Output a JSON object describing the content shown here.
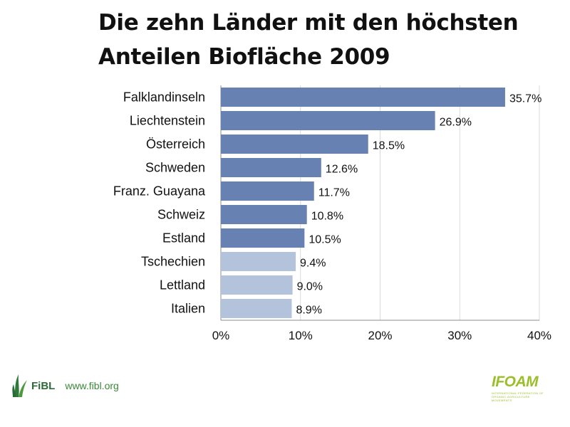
{
  "title_line1": "Die zehn Länder mit den höchsten",
  "title_line2": "Anteilen Biofläche 2009",
  "chart_data": {
    "type": "bar",
    "orientation": "horizontal",
    "categories": [
      "Falklandinseln",
      "Liechtenstein",
      "Österreich",
      "Schweden",
      "Franz. Guayana",
      "Schweiz",
      "Estland",
      "Tschechien",
      "Lettland",
      "Italien"
    ],
    "values": [
      35.7,
      26.9,
      18.5,
      12.6,
      11.7,
      10.8,
      10.5,
      9.4,
      9.0,
      8.9
    ],
    "value_labels": [
      "35.7%",
      "26.9%",
      "18.5%",
      "12.6%",
      "11.7%",
      "10.8%",
      "10.5%",
      "9.4%",
      "9.0%",
      "8.9%"
    ],
    "xlim": [
      0,
      40
    ],
    "x_ticks": [
      0,
      10,
      20,
      30,
      40
    ],
    "x_tick_labels": [
      "0%",
      "10%",
      "20%",
      "30%",
      "40%"
    ],
    "grid": true,
    "bar_colors": [
      "#6681b2",
      "#6681b2",
      "#6681b2",
      "#6681b2",
      "#6681b2",
      "#6681b2",
      "#6681b2",
      "#b4c3dc",
      "#b4c3dc",
      "#b4c3dc"
    ]
  },
  "footer": {
    "left_logo_text": "FiBL",
    "url": "www.fibl.org",
    "right_logo_text": "IFOAM",
    "right_logo_subtext": "INTERNATIONAL FEDERATION OF ORGANIC AGRICULTURE MOVEMENTS",
    "green": "#3a8a3a",
    "ifoam_green": "#9bbf2a"
  }
}
